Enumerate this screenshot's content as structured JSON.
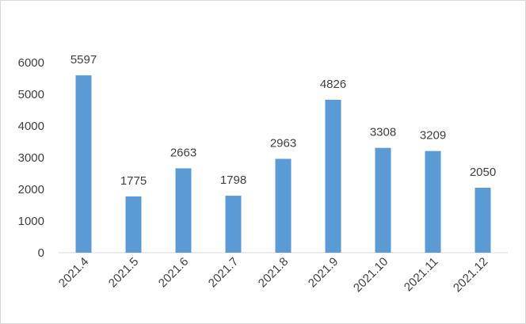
{
  "chart_data": {
    "type": "bar",
    "categories": [
      "2021.4",
      "2021.5",
      "2021.6",
      "2021.7",
      "2021.8",
      "2021.9",
      "2021.10",
      "2021.11",
      "2021.12"
    ],
    "values": [
      5597,
      1775,
      2663,
      1798,
      2963,
      4826,
      3308,
      3209,
      2050
    ],
    "data_labels": [
      "5597",
      "1775",
      "2663",
      "1798",
      "2963",
      "4826",
      "3308",
      "3209",
      "2050"
    ],
    "yticks": [
      "0",
      "1000",
      "2000",
      "3000",
      "4000",
      "5000",
      "6000"
    ],
    "ylim": [
      0,
      6000
    ],
    "bar_color": "#5b9bd5",
    "axis_color": "#d9d9d9",
    "text_color": "#404040",
    "grid": false,
    "legend": "none",
    "title": "",
    "xlabel": "",
    "ylabel": ""
  }
}
